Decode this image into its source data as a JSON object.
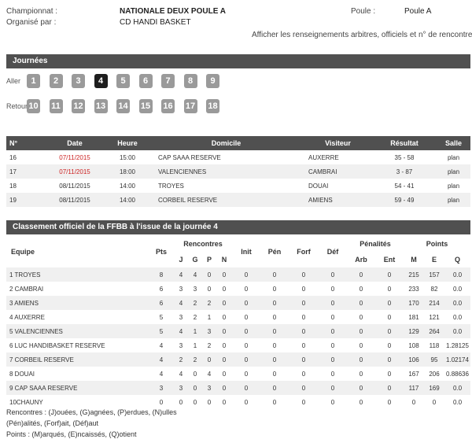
{
  "header": {
    "championnat_label": "Championnat :",
    "championnat_value": "NATIONALE DEUX POULE A",
    "organise_label": "Organisé par :",
    "organise_value": "CD HANDI BASKET",
    "poule_label": "Poule :",
    "poule_value": "Poule A",
    "info_link": "Afficher les renseignements arbitres, officiels et n° de rencontre"
  },
  "journees": {
    "title": "Journées",
    "aller_label": "Aller",
    "retour_label": "Retour",
    "aller": [
      "1",
      "2",
      "3",
      "4",
      "5",
      "6",
      "7",
      "8",
      "9"
    ],
    "retour": [
      "10",
      "11",
      "12",
      "13",
      "14",
      "15",
      "16",
      "17",
      "18"
    ],
    "active": "4"
  },
  "games": {
    "headers": [
      "N°",
      "Date",
      "Heure",
      "Domicile",
      "Visiteur",
      "Résultat",
      "Salle"
    ],
    "rows": [
      {
        "num": "16",
        "date": "07/11/2015",
        "date_red": true,
        "heure": "15:00",
        "domicile": "CAP SAAA RESERVE",
        "visiteur": "AUXERRE",
        "resultat": "35 - 58",
        "salle": "plan"
      },
      {
        "num": "17",
        "date": "07/11/2015",
        "date_red": true,
        "heure": "18:00",
        "domicile": "VALENCIENNES",
        "visiteur": "CAMBRAI",
        "resultat": "3 - 87",
        "salle": "plan"
      },
      {
        "num": "18",
        "date": "08/11/2015",
        "date_red": false,
        "heure": "14:00",
        "domicile": "TROYES",
        "visiteur": "DOUAI",
        "resultat": "54 - 41",
        "salle": "plan"
      },
      {
        "num": "19",
        "date": "08/11/2015",
        "date_red": false,
        "heure": "14:00",
        "domicile": "CORBEIL RESERVE",
        "visiteur": "AMIENS",
        "resultat": "59 - 49",
        "salle": "plan"
      }
    ]
  },
  "standings": {
    "title": "Classement officiel de la FFBB à l'issue de la journée 4",
    "headers": {
      "equipe": "Equipe",
      "pts": "Pts",
      "rencontres": "Rencontres",
      "j": "J",
      "g": "G",
      "p": "P",
      "n": "N",
      "init": "Init",
      "pen": "Pén",
      "forf": "Forf",
      "def": "Déf",
      "penalites": "Pénalités",
      "arb": "Arb",
      "ent": "Ent",
      "points": "Points",
      "m": "M",
      "e": "E",
      "q": "Q"
    },
    "rows": [
      {
        "equipe": "1 TROYES",
        "pts": "8",
        "j": "4",
        "g": "4",
        "p": "0",
        "n": "0",
        "init": "0",
        "pen": "0",
        "forf": "0",
        "def": "0",
        "arb": "0",
        "ent": "0",
        "m": "215",
        "e": "157",
        "q": "0.0"
      },
      {
        "equipe": "2 CAMBRAI",
        "pts": "6",
        "j": "3",
        "g": "3",
        "p": "0",
        "n": "0",
        "init": "0",
        "pen": "0",
        "forf": "0",
        "def": "0",
        "arb": "0",
        "ent": "0",
        "m": "233",
        "e": "82",
        "q": "0.0"
      },
      {
        "equipe": "3 AMIENS",
        "pts": "6",
        "j": "4",
        "g": "2",
        "p": "2",
        "n": "0",
        "init": "0",
        "pen": "0",
        "forf": "0",
        "def": "0",
        "arb": "0",
        "ent": "0",
        "m": "170",
        "e": "214",
        "q": "0.0"
      },
      {
        "equipe": "4 AUXERRE",
        "pts": "5",
        "j": "3",
        "g": "2",
        "p": "1",
        "n": "0",
        "init": "0",
        "pen": "0",
        "forf": "0",
        "def": "0",
        "arb": "0",
        "ent": "0",
        "m": "181",
        "e": "121",
        "q": "0.0"
      },
      {
        "equipe": "5 VALENCIENNES",
        "pts": "5",
        "j": "4",
        "g": "1",
        "p": "3",
        "n": "0",
        "init": "0",
        "pen": "0",
        "forf": "0",
        "def": "0",
        "arb": "0",
        "ent": "0",
        "m": "129",
        "e": "264",
        "q": "0.0"
      },
      {
        "equipe": "6 LUC HANDIBASKET RESERVE",
        "pts": "4",
        "j": "3",
        "g": "1",
        "p": "2",
        "n": "0",
        "init": "0",
        "pen": "0",
        "forf": "0",
        "def": "0",
        "arb": "0",
        "ent": "0",
        "m": "108",
        "e": "118",
        "q": "1.28125"
      },
      {
        "equipe": "7 CORBEIL RESERVE",
        "pts": "4",
        "j": "2",
        "g": "2",
        "p": "0",
        "n": "0",
        "init": "0",
        "pen": "0",
        "forf": "0",
        "def": "0",
        "arb": "0",
        "ent": "0",
        "m": "106",
        "e": "95",
        "q": "1.02174"
      },
      {
        "equipe": "8 DOUAI",
        "pts": "4",
        "j": "4",
        "g": "0",
        "p": "4",
        "n": "0",
        "init": "0",
        "pen": "0",
        "forf": "0",
        "def": "0",
        "arb": "0",
        "ent": "0",
        "m": "167",
        "e": "206",
        "q": "0.88636"
      },
      {
        "equipe": "9 CAP SAAA RESERVE",
        "pts": "3",
        "j": "3",
        "g": "0",
        "p": "3",
        "n": "0",
        "init": "0",
        "pen": "0",
        "forf": "0",
        "def": "0",
        "arb": "0",
        "ent": "0",
        "m": "117",
        "e": "169",
        "q": "0.0"
      },
      {
        "equipe": "10CHAUNY",
        "pts": "0",
        "j": "0",
        "g": "0",
        "p": "0",
        "n": "0",
        "init": "0",
        "pen": "0",
        "forf": "0",
        "def": "0",
        "arb": "0",
        "ent": "0",
        "m": "0",
        "e": "0",
        "q": "0.0"
      }
    ]
  },
  "legend": {
    "line1": "Rencontres : (J)ouées, (G)agnées, (P)erdues, (N)ulles",
    "line2": "(Pén)alités, (Forf)ait, (Déf)aut",
    "line3": "Points : (M)arqués, (E)ncaissés, (Q)otient"
  },
  "colors": {
    "bar": "#505050",
    "day_button": "#9a9a9a",
    "day_button_active": "#1e1e1e",
    "red_date": "#cc2222"
  }
}
